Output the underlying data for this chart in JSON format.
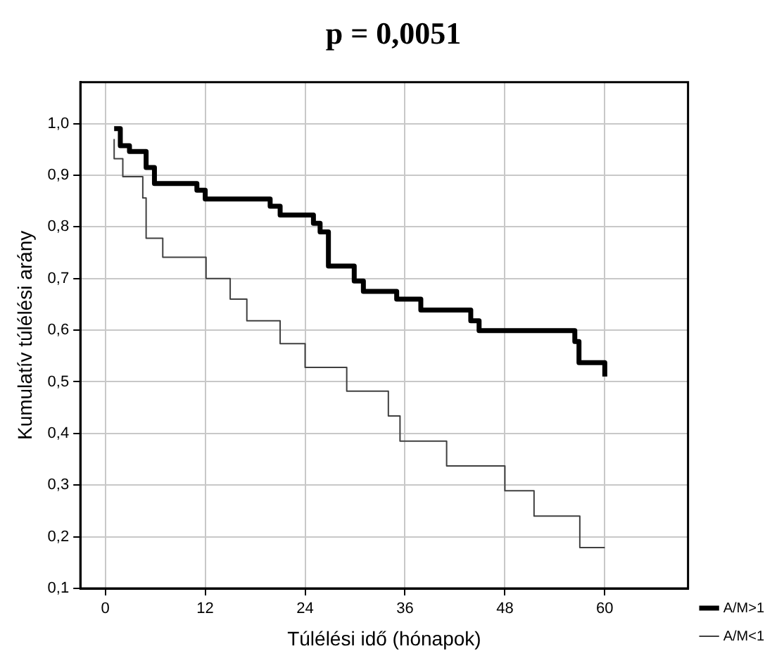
{
  "chart_data": {
    "type": "step",
    "title": "p = 0,0051",
    "xlabel": "Túlélési idő (hónapok)",
    "ylabel": "Kumulatív túlélési arány",
    "series": [
      {
        "name": "A/M>1",
        "color": "#000000",
        "x": [
          1.06,
          1.8,
          2.9,
          4.9,
          5.9,
          11,
          12,
          19.8,
          21,
          25,
          25.8,
          26.8,
          29.9,
          31,
          35,
          37.9,
          43.9,
          44.9,
          56.4,
          56.9,
          60
        ],
        "values": [
          0.99,
          0.957,
          0.946,
          0.915,
          0.884,
          0.871,
          0.854,
          0.84,
          0.823,
          0.807,
          0.79,
          0.724,
          0.695,
          0.675,
          0.66,
          0.639,
          0.618,
          0.599,
          0.578,
          0.537,
          0.51
        ]
      },
      {
        "name": "A/M<1",
        "color": "#404040",
        "x": [
          1.06,
          1.06,
          2.1,
          4.5,
          4.9,
          6.9,
          12.1,
          15,
          17,
          21,
          24,
          29,
          34,
          35.4,
          41,
          48,
          51.5,
          57,
          60
        ],
        "values": [
          0.97,
          0.932,
          0.897,
          0.856,
          0.778,
          0.741,
          0.7,
          0.66,
          0.618,
          0.574,
          0.528,
          0.482,
          0.434,
          0.385,
          0.337,
          0.289,
          0.24,
          0.179,
          0.179
        ]
      }
    ],
    "xlim": [
      -3,
      70
    ],
    "xticks": [
      0,
      12,
      24,
      36,
      48,
      60
    ],
    "ylim": [
      0.1,
      1.08
    ],
    "yticks": [
      {
        "value": 0.1,
        "label": "0,1"
      },
      {
        "value": 0.2,
        "label": "0,2"
      },
      {
        "value": 0.3,
        "label": "0,3"
      },
      {
        "value": 0.4,
        "label": "0,4"
      },
      {
        "value": 0.5,
        "label": "0,5"
      },
      {
        "value": 0.6,
        "label": "0,6"
      },
      {
        "value": 0.7,
        "label": "0,7"
      },
      {
        "value": 0.8,
        "label": "0,8"
      },
      {
        "value": 0.9,
        "label": "0,9"
      },
      {
        "value": 1.0,
        "label": "1,0"
      }
    ],
    "grid": true,
    "legend": "bottom right",
    "line_style": "solid",
    "marker": "none"
  }
}
